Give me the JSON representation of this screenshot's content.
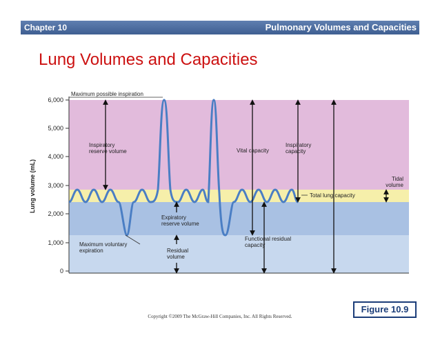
{
  "header": {
    "chapter": "Chapter 10",
    "section": "Pulmonary Volumes and Capacities"
  },
  "title": "Lung Volumes and Capacities",
  "colors": {
    "header_bar": "#4a6aa0",
    "title": "#cc1111",
    "inspiratory_reserve": "#e2bbdc",
    "tidal": "#f6efaa",
    "expiratory_reserve": "#a9c1e3",
    "residual": "#c7d8ee",
    "trace": "#4a7ec4"
  },
  "axis": {
    "label": "Lung volume (mL)",
    "ticks": [
      "6,000",
      "5,000",
      "4,000",
      "3,000",
      "2,000",
      "1,000",
      "0"
    ]
  },
  "labels": {
    "max_inspiration": "Maximum possible inspiration",
    "irv_1": "Inspiratory",
    "irv_2": "reserve volume",
    "erv_1": "Expiratory",
    "erv_2": "reserve volume",
    "rv_1": "Residual",
    "rv_2": "volume",
    "max_expiration_1": "Maximum voluntary",
    "max_expiration_2": "expiration",
    "vital_capacity": "Vital capacity",
    "ic_1": "Inspiratory",
    "ic_2": "capacity",
    "frc_1": "Functional residual",
    "frc_2": "capacity",
    "tidal_1": "Tidal",
    "tidal_2": "volume",
    "total_lung_capacity": "Total lung capacity"
  },
  "figure_label": "Figure 10.9",
  "copyright": "Copyright ©2009 The McGraw-Hill Companies, Inc. All Rights Reserved."
}
